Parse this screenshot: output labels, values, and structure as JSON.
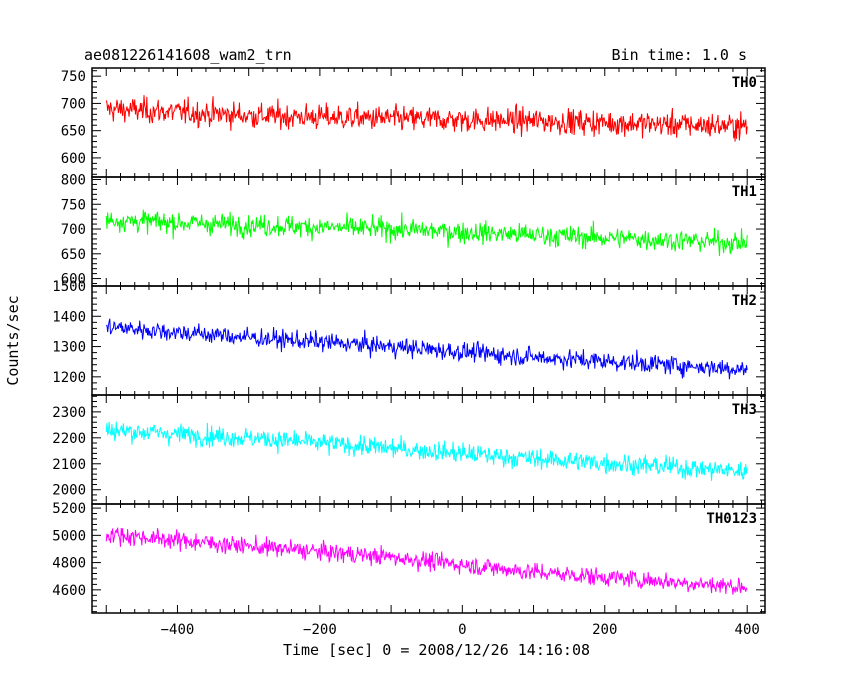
{
  "chart_data": {
    "type": "line",
    "title": "ae081226141608_wam2_trn",
    "subtitle": "Bin time: 1.0 s",
    "xlabel": "Time [sec] 0 = 2008/12/26 14:16:08",
    "ylabel": "Counts/sec",
    "xlim": [
      -520,
      425
    ],
    "x_ticks": [
      -400,
      -200,
      0,
      200,
      400
    ],
    "x_tick_labels": [
      "−400",
      "−200",
      "0",
      "200",
      "400"
    ],
    "x_range": [
      -500,
      400
    ],
    "grid": false,
    "panels": [
      {
        "name": "TH0",
        "color": "#ff0000",
        "ylim": [
          565,
          765
        ],
        "y_ticks": [
          600,
          650,
          700,
          750
        ],
        "y_tick_labels": [
          "600",
          "650",
          "700",
          "750"
        ],
        "trend": [
          [
            -500,
            690
          ],
          [
            -300,
            678
          ],
          [
            -100,
            672
          ],
          [
            100,
            668
          ],
          [
            400,
            658
          ]
        ],
        "noise": 30
      },
      {
        "name": "TH1",
        "color": "#00ff00",
        "ylim": [
          585,
          805
        ],
        "y_ticks": [
          600,
          650,
          700,
          750,
          800
        ],
        "y_tick_labels": [
          "600",
          "650",
          "700",
          "750",
          "800"
        ],
        "trend": [
          [
            -500,
            718
          ],
          [
            -300,
            708
          ],
          [
            -100,
            700
          ],
          [
            100,
            688
          ],
          [
            400,
            672
          ]
        ],
        "noise": 28
      },
      {
        "name": "TH2",
        "color": "#0000ff",
        "ylim": [
          1140,
          1500
        ],
        "y_ticks": [
          1200,
          1300,
          1400,
          1500
        ],
        "y_tick_labels": [
          "1200",
          "1300",
          "1400",
          "1500"
        ],
        "trend": [
          [
            -500,
            1365
          ],
          [
            -300,
            1330
          ],
          [
            -100,
            1300
          ],
          [
            100,
            1265
          ],
          [
            400,
            1225
          ]
        ],
        "noise": 40
      },
      {
        "name": "TH3",
        "color": "#00ffff",
        "ylim": [
          1945,
          2365
        ],
        "y_ticks": [
          2000,
          2100,
          2200,
          2300
        ],
        "y_tick_labels": [
          "2000",
          "2100",
          "2200",
          "2300"
        ],
        "trend": [
          [
            -500,
            2230
          ],
          [
            -300,
            2200
          ],
          [
            -100,
            2160
          ],
          [
            100,
            2120
          ],
          [
            400,
            2070
          ]
        ],
        "noise": 50
      },
      {
        "name": "TH0123",
        "color": "#ff00ff",
        "ylim": [
          4430,
          5230
        ],
        "y_ticks": [
          4600,
          4800,
          5000,
          5200
        ],
        "y_tick_labels": [
          "4600",
          "4800",
          "5000",
          "5200"
        ],
        "trend": [
          [
            -500,
            5010
          ],
          [
            -300,
            4920
          ],
          [
            -100,
            4840
          ],
          [
            100,
            4730
          ],
          [
            400,
            4620
          ]
        ],
        "noise": 85
      }
    ]
  }
}
